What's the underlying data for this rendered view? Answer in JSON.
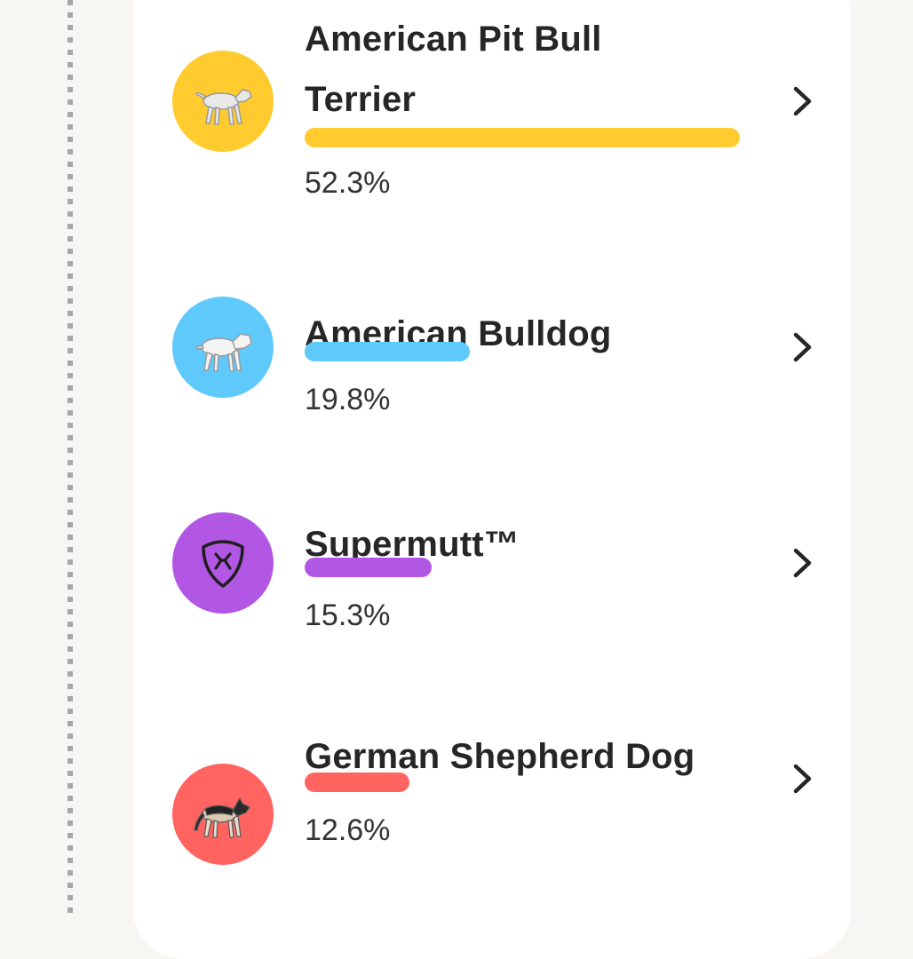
{
  "breeds": [
    {
      "name_line1": "American Pit Bull",
      "name_line2": "Terrier",
      "percent": 52.3,
      "percent_label": "52.3%",
      "color": "#ffcb2f",
      "icon": "pit-bull-dog-icon"
    },
    {
      "name_line1": "American Bulldog",
      "percent": 19.8,
      "percent_label": "19.8%",
      "color": "#5fc9fb",
      "icon": "bulldog-dog-icon"
    },
    {
      "name_line1": "Supermutt™",
      "percent": 15.3,
      "percent_label": "15.3%",
      "color": "#b257e3",
      "icon": "supermutt-shield-icon"
    },
    {
      "name_line1": "German Shepherd Dog",
      "percent": 12.6,
      "percent_label": "12.6%",
      "color": "#ff6461",
      "icon": "german-shepherd-dog-icon"
    }
  ]
}
